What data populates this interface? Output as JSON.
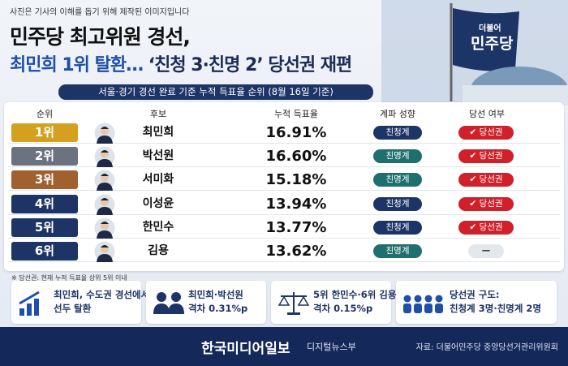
{
  "header": {
    "note": "사진은 기사의 이해를 돕기 위해 제작된 이미지입니다",
    "title_line1": "민주당 최고위원 경선,",
    "title_line2_highlight": "최민희 1위 탈환…",
    "title_line2_rest": "‘친청 3·친명 2’ 당선권 재편",
    "flag_text1": "더불어",
    "flag_text2": "민주당"
  },
  "subtitle": "서울·경기 경선 완료 기준 누적 득표율 순위 (8월 16일 기준)",
  "table": {
    "columns": [
      "순위",
      "후보",
      "누적 득표율",
      "계파 성향",
      "당선 여부"
    ],
    "rows": [
      [
        "1위",
        "최민희",
        "16.91%",
        "친청계",
        "당선권"
      ],
      [
        "2위",
        "박선원",
        "16.60%",
        "친명계",
        "당선권"
      ],
      [
        "3위",
        "서미화",
        "15.18%",
        "친명계",
        "당선권"
      ],
      [
        "4위",
        "이성윤",
        "13.94%",
        "친청계",
        "당선권"
      ],
      [
        "5위",
        "한민수",
        "13.77%",
        "친청계",
        "당선권"
      ],
      [
        "6위",
        "김용",
        "13.62%",
        "친명계",
        "—"
      ]
    ]
  },
  "footnote": "※ 당선권: 현재 누적 득표율 상위 5위 이내",
  "info_boxes": [
    [
      "최민희, 수도권 경선에서",
      "선두 탈환"
    ],
    [
      "최민희·박선원",
      "격차 0.31%p"
    ],
    [
      "5위 한민수·6위 김용",
      "격차 0.15%p"
    ],
    [
      "당선권 구도:",
      "친청계 3명·친명계 2명"
    ]
  ],
  "footer": {
    "brand": "한국미디어일보",
    "dept": "디지털뉴스부",
    "source": "자료: 더불어민주당 중앙당선거관리위원회"
  }
}
